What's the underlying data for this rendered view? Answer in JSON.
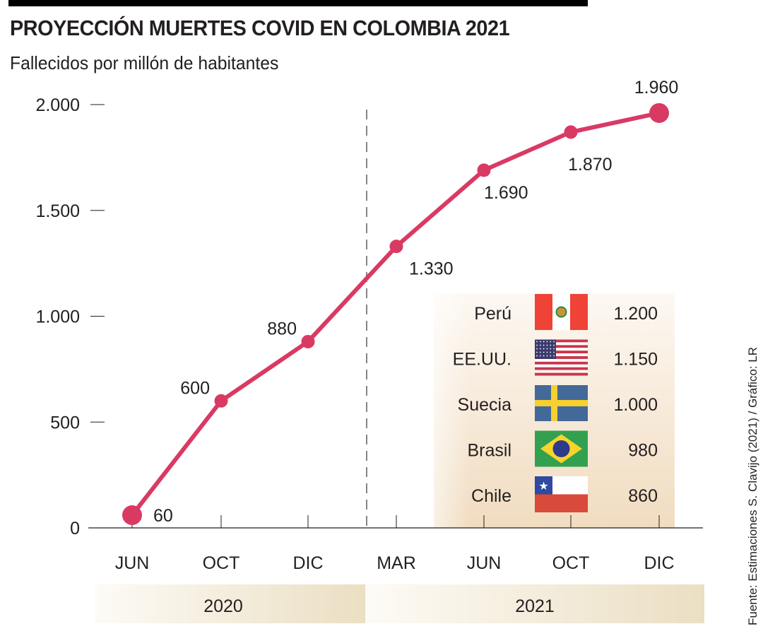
{
  "chart_data": {
    "type": "line",
    "title": "PROYECCIÓN MUERTES COVID EN COLOMBIA 2021",
    "subtitle": "Fallecidos por millón de habitantes",
    "categories": [
      "JUN",
      "OCT",
      "DIC",
      "MAR",
      "JUN",
      "OCT",
      "DIC"
    ],
    "year_groups": [
      {
        "label": "2020",
        "categories": [
          "JUN",
          "OCT",
          "DIC"
        ]
      },
      {
        "label": "2021",
        "categories": [
          "MAR",
          "JUN",
          "OCT",
          "DIC"
        ]
      }
    ],
    "series": [
      {
        "values": [
          60,
          600,
          880,
          1330,
          1690,
          1870,
          1960
        ],
        "labels": [
          "60",
          "600",
          "880",
          "1.330",
          "1.690",
          "1.870",
          "1.960"
        ],
        "color": "#d93a64"
      }
    ],
    "ylim": [
      0,
      2000
    ],
    "yticks": [
      0,
      500,
      1000,
      1500,
      2000
    ],
    "ytick_labels": [
      "0",
      "500",
      "1.000",
      "1.500",
      "2.000"
    ],
    "grid": false,
    "comparison_table": [
      {
        "country": "Perú",
        "flag": "peru-flag",
        "value": "1.200"
      },
      {
        "country": "EE.UU.",
        "flag": "usa-flag",
        "value": "1.150"
      },
      {
        "country": "Suecia",
        "flag": "sweden-flag",
        "value": "1.000"
      },
      {
        "country": "Brasil",
        "flag": "brazil-flag",
        "value": "980"
      },
      {
        "country": "Chile",
        "flag": "chile-flag",
        "value": "860"
      }
    ],
    "source": "Fuente: Estimaciones S. Clavijo (2021) / Gráfico: LR"
  }
}
